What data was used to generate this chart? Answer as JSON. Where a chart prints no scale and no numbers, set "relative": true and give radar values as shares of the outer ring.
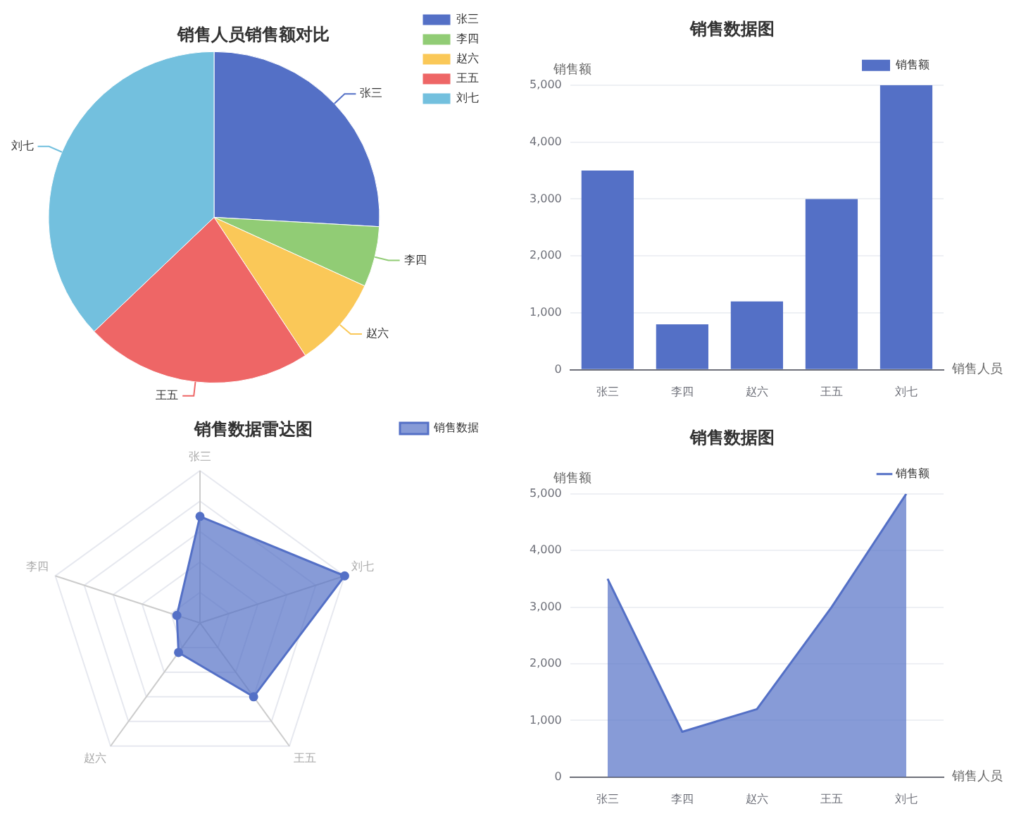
{
  "chart_data": [
    {
      "type": "pie",
      "title": "销售人员销售额对比",
      "categories": [
        "张三",
        "李四",
        "赵六",
        "王五",
        "刘七"
      ],
      "values": [
        25.9,
        5.9,
        8.9,
        22.2,
        37.1
      ],
      "colors": [
        "#5470c6",
        "#91cc75",
        "#fac858",
        "#ee6666",
        "#73c0de"
      ],
      "legend": "top right"
    },
    {
      "type": "bar",
      "title": "销售数据图",
      "xlabel": "销售人员",
      "ylabel": "销售额",
      "categories": [
        "张三",
        "李四",
        "赵六",
        "王五",
        "刘七"
      ],
      "series": [
        {
          "name": "销售额",
          "color": "#5470c6",
          "values": [
            3500,
            800,
            1200,
            3000,
            5000
          ]
        }
      ],
      "ylim": [
        0,
        5000
      ],
      "yticks": [
        0,
        {
          "value": 1000,
          "label": "1,000"
        },
        {
          "value": 2000,
          "label": "2,000"
        },
        {
          "value": 3000,
          "label": "3,000"
        },
        {
          "value": 4000,
          "label": "4,000"
        },
        {
          "value": 5000,
          "label": "5,000"
        }
      ],
      "grid": "y",
      "legend": "top right"
    },
    {
      "type": "radar",
      "title": "销售数据雷达图",
      "categories": [
        "张三",
        "刘七",
        "王五",
        "赵六",
        "李四"
      ],
      "relative": true,
      "series": [
        {
          "name": "销售数据",
          "color": "#5470c6",
          "values": [
            0.7,
            1,
            0.6,
            0.24,
            0.16
          ]
        }
      ],
      "marker": "circle",
      "legend": "top right"
    },
    {
      "type": "area",
      "title": "销售数据图",
      "xlabel": "销售人员",
      "ylabel": "销售额",
      "categories": [
        "张三",
        "李四",
        "赵六",
        "王五",
        "刘七"
      ],
      "series": [
        {
          "name": "销售额",
          "color": "#5470c6",
          "values": [
            3500,
            800,
            1200,
            3000,
            5000
          ]
        }
      ],
      "ylim": [
        0,
        5000
      ],
      "yticks": [
        0,
        {
          "value": 1000,
          "label": "1,000"
        },
        {
          "value": 2000,
          "label": "2,000"
        },
        {
          "value": 3000,
          "label": "3,000"
        },
        {
          "value": 4000,
          "label": "4,000"
        },
        {
          "value": 5000,
          "label": "5,000"
        }
      ],
      "grid": "y",
      "legend": "top right",
      "marker": "none"
    }
  ]
}
